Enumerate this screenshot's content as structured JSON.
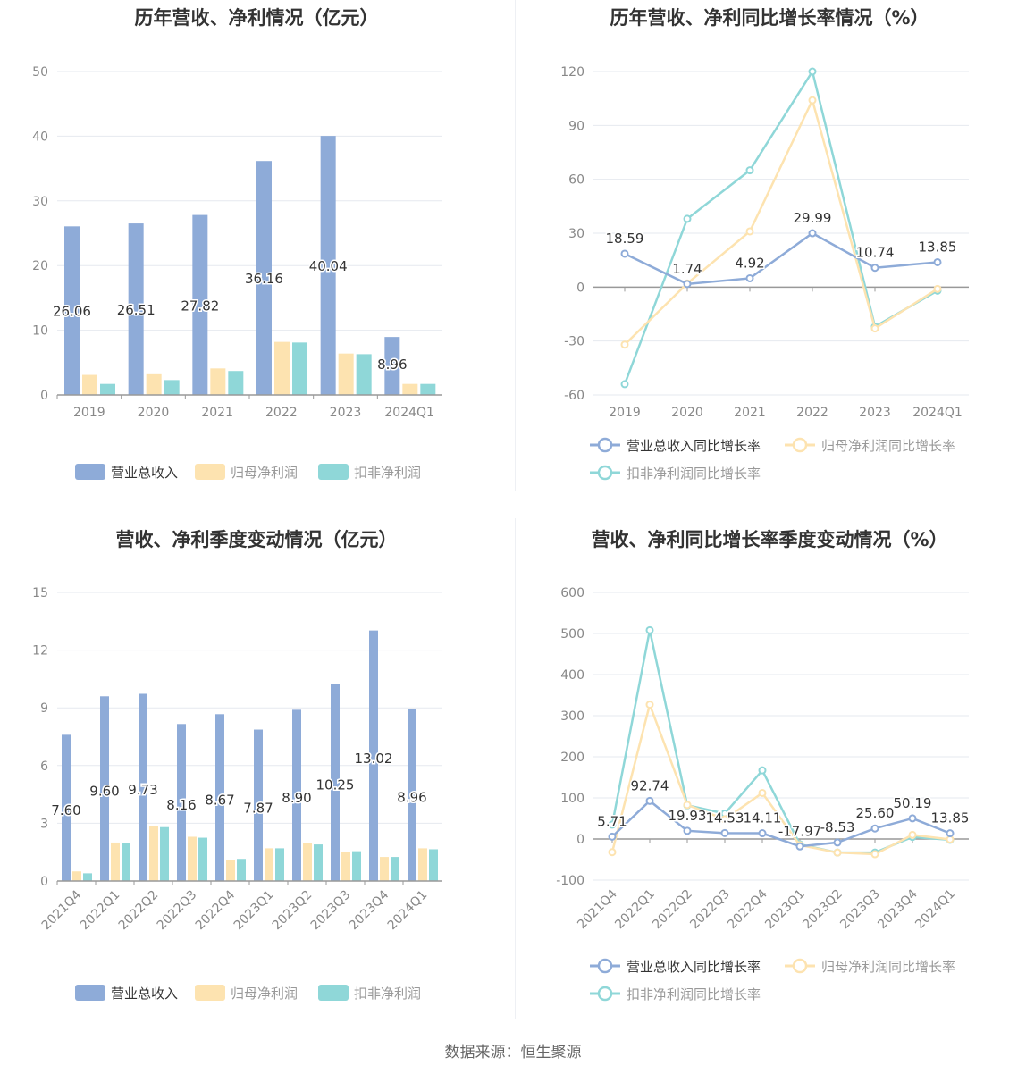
{
  "source_label": "数据来源：恒生聚源",
  "legend_bar": [
    "营业总收入",
    "归母净利润",
    "扣非净利润"
  ],
  "legend_line": [
    "营业总收入同比增长率",
    "归母净利润同比增长率",
    "扣非净利润同比增长率"
  ],
  "colors": {
    "revenue": "#8eabd8",
    "net_profit": "#fde3b0",
    "deducted_profit": "#8fd7d8",
    "axis": "#999999",
    "grid": "#e6e9ef",
    "tick_text": "#888888",
    "label_text": "#333333"
  },
  "chart_data": [
    {
      "id": "annual-bar",
      "type": "bar",
      "title": "历年营收、净利情况（亿元）",
      "categories": [
        "2019",
        "2020",
        "2021",
        "2022",
        "2023",
        "2024Q1"
      ],
      "ylim": [
        0,
        50
      ],
      "yticks": [
        0,
        10,
        20,
        30,
        40,
        50
      ],
      "series": [
        {
          "name": "营业总收入",
          "values": [
            26.06,
            26.51,
            27.82,
            36.16,
            40.04,
            8.96
          ],
          "labels": [
            "26.06",
            "26.51",
            "27.82",
            "36.16",
            "40.04",
            "8.96"
          ]
        },
        {
          "name": "归母净利润",
          "values": [
            3.1,
            3.2,
            4.1,
            8.2,
            6.4,
            1.7
          ]
        },
        {
          "name": "扣非净利润",
          "values": [
            1.7,
            2.3,
            3.7,
            8.1,
            6.3,
            1.7
          ]
        }
      ],
      "grid": true,
      "legend": "bottom"
    },
    {
      "id": "annual-growth-line",
      "type": "line",
      "title": "历年营收、净利同比增长率情况（%）",
      "categories": [
        "2019",
        "2020",
        "2021",
        "2022",
        "2023",
        "2024Q1"
      ],
      "ylim": [
        -60,
        120
      ],
      "yticks": [
        -60,
        -30,
        0,
        30,
        60,
        90,
        120
      ],
      "series": [
        {
          "name": "营业总收入同比增长率",
          "values": [
            18.59,
            1.74,
            4.92,
            29.99,
            10.74,
            13.85
          ],
          "labels": [
            "18.59",
            "1.74",
            "4.92",
            "29.99",
            "10.74",
            "13.85"
          ]
        },
        {
          "name": "归母净利润同比增长率",
          "values": [
            -32,
            2,
            31,
            104,
            -23,
            -1
          ]
        },
        {
          "name": "扣非净利润同比增长率",
          "values": [
            -54,
            38,
            65,
            120,
            -22,
            -2
          ]
        }
      ],
      "grid": true,
      "legend": "bottom"
    },
    {
      "id": "quarterly-bar",
      "type": "bar",
      "title": "营收、净利季度变动情况（亿元）",
      "categories": [
        "2021Q4",
        "2022Q1",
        "2022Q2",
        "2022Q3",
        "2022Q4",
        "2023Q1",
        "2023Q2",
        "2023Q3",
        "2023Q4",
        "2024Q1"
      ],
      "ylim": [
        0,
        15
      ],
      "yticks": [
        0,
        3,
        6,
        9,
        12,
        15
      ],
      "series": [
        {
          "name": "营业总收入",
          "values": [
            7.6,
            9.6,
            9.73,
            8.16,
            8.67,
            7.87,
            8.9,
            10.25,
            13.02,
            8.96
          ],
          "labels": [
            "7.60",
            "9.60",
            "9.73",
            "8.16",
            "8.67",
            "7.87",
            "8.90",
            "10.25",
            "13.02",
            "8.96"
          ]
        },
        {
          "name": "归母净利润",
          "values": [
            0.5,
            2.0,
            2.85,
            2.3,
            1.1,
            1.7,
            1.95,
            1.5,
            1.25,
            1.7
          ]
        },
        {
          "name": "扣非净利润",
          "values": [
            0.4,
            1.95,
            2.8,
            2.25,
            1.15,
            1.7,
            1.9,
            1.55,
            1.25,
            1.65
          ]
        }
      ],
      "grid": true,
      "legend": "bottom"
    },
    {
      "id": "quarterly-growth-line",
      "type": "line",
      "title": "营收、净利同比增长率季度变动情况（%）",
      "categories": [
        "2021Q4",
        "2022Q1",
        "2022Q2",
        "2022Q3",
        "2022Q4",
        "2023Q1",
        "2023Q2",
        "2023Q3",
        "2023Q4",
        "2024Q1"
      ],
      "ylim": [
        -100,
        600
      ],
      "yticks": [
        -100,
        0,
        100,
        200,
        300,
        400,
        500,
        600
      ],
      "series": [
        {
          "name": "营业总收入同比增长率",
          "values": [
            5.71,
            92.74,
            19.93,
            14.53,
            14.11,
            -17.97,
            -8.53,
            25.6,
            50.19,
            13.85
          ],
          "labels": [
            "5.71",
            "92.74",
            "19.93",
            "14.53",
            "14.11",
            "-17.97",
            "-8.53",
            "25.60",
            "50.19",
            "13.85"
          ]
        },
        {
          "name": "归母净利润同比增长率",
          "values": [
            -32,
            327,
            83,
            48,
            112,
            -15,
            -33,
            -37,
            10,
            -1
          ]
        },
        {
          "name": "扣非净利润同比增长率",
          "values": [
            35,
            508,
            82,
            62,
            167,
            -13,
            -33,
            -33,
            5,
            -2
          ]
        }
      ],
      "grid": true,
      "legend": "bottom"
    }
  ]
}
